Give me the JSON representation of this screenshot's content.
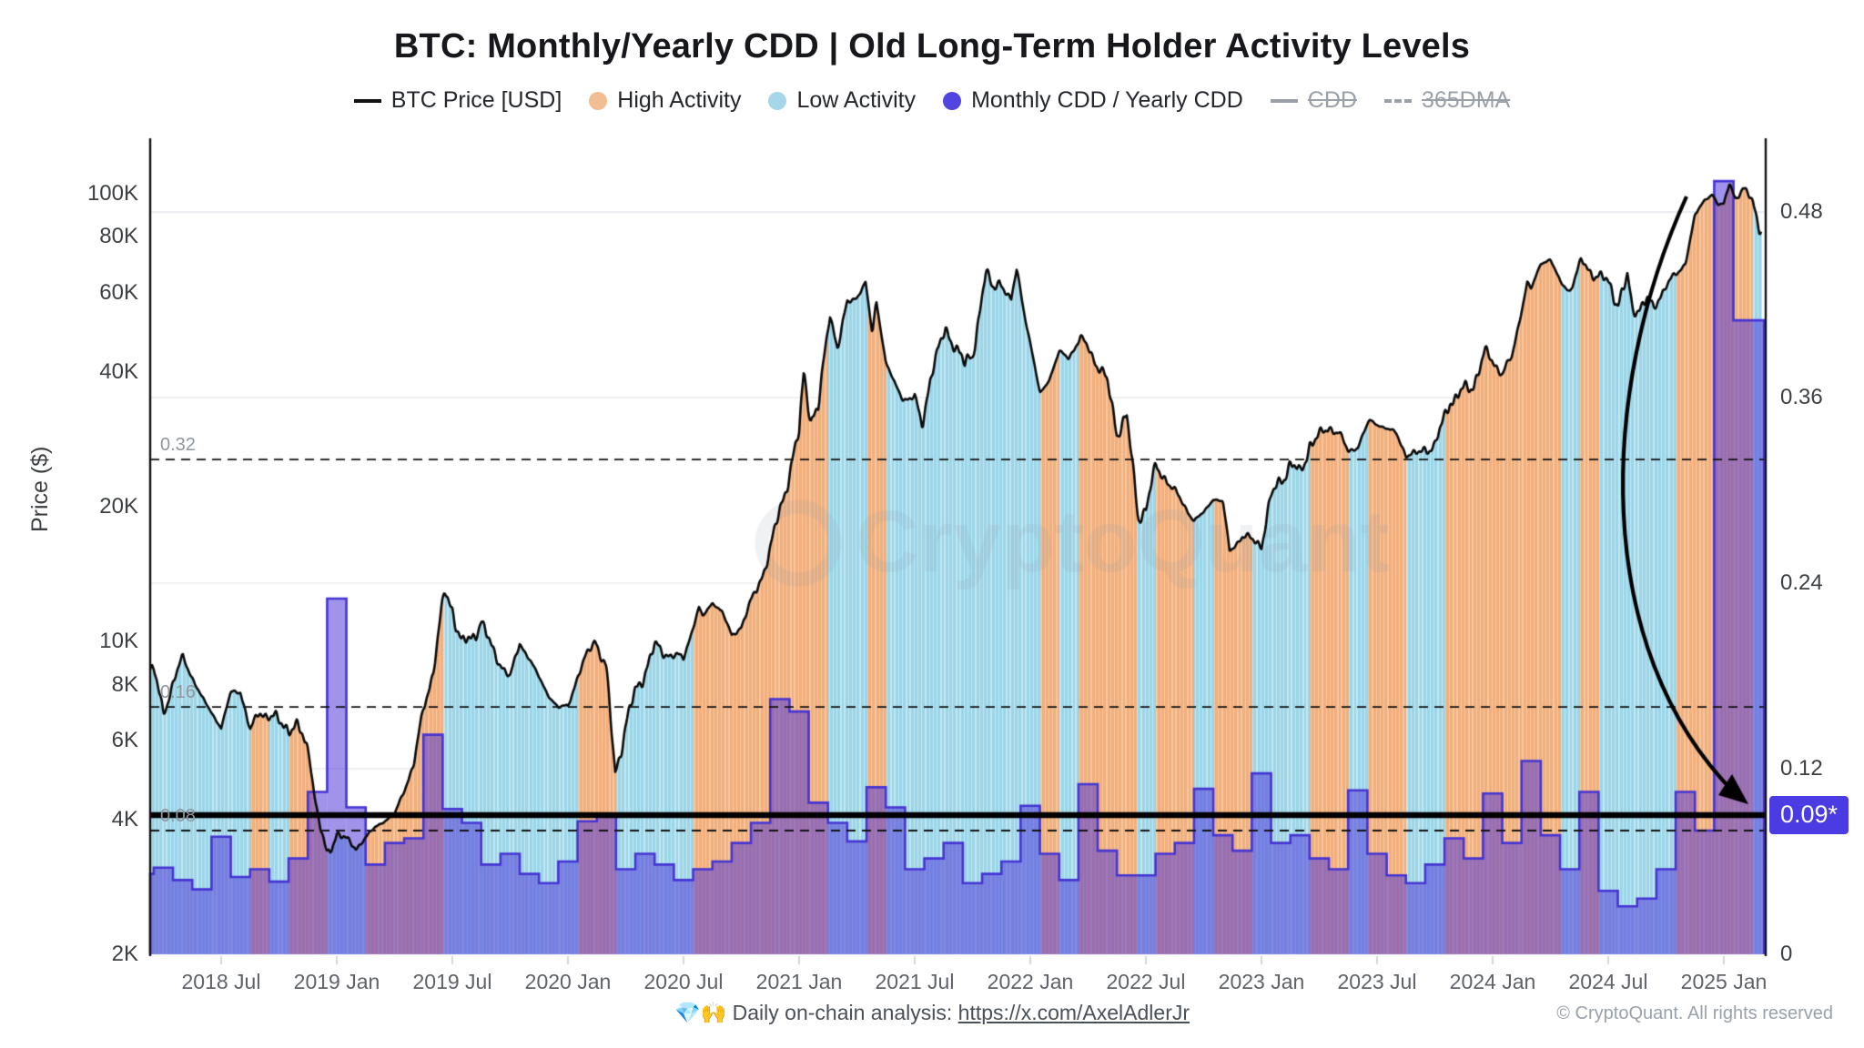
{
  "title": "BTC: Monthly/Yearly CDD | Old Long-Term Holder Activity Levels",
  "legend": {
    "price_label": "BTC Price [USD]",
    "high_label": "High Activity",
    "low_label": "Low Activity",
    "cdd_ratio_label": "Monthly CDD / Yearly CDD",
    "cdd_disabled_label": "CDD",
    "dma_disabled_label": "365DMA"
  },
  "watermark": "CryptoQuant",
  "footer": {
    "analysis_text": "💎🙌 Daily on-chain analysis: ",
    "analysis_link": "https://x.com/AxelAdlerJr",
    "copyright": "© CryptoQuant. All rights reserved"
  },
  "annotation": {
    "badge_label": "0.09*"
  },
  "chart_data": {
    "type": "composite",
    "subtypes": [
      "line (BTC price, log scale)",
      "area colored by activity",
      "bar (monthly CDD / yearly CDD)"
    ],
    "title": "BTC: Monthly/Yearly CDD | Old Long-Term Holder Activity Levels",
    "left_axis": {
      "label": "Price ($)",
      "scale": "log",
      "min": 2000,
      "max": 128000,
      "ticks": [
        100000,
        80000,
        60000,
        40000,
        20000,
        10000,
        8000,
        6000,
        4000,
        2000
      ],
      "tick_labels": [
        "100K",
        "80K",
        "60K",
        "40K",
        "20K",
        "10K",
        "8K",
        "6K",
        "4K",
        "2K"
      ]
    },
    "right_axis": {
      "label": "",
      "scale": "linear",
      "min": 0,
      "max": 0.523,
      "ticks": [
        0.48,
        0.36,
        0.24,
        0.12,
        0
      ],
      "tick_labels": [
        "0.48",
        "0.36",
        "0.24",
        "0.12",
        "0"
      ]
    },
    "x_axis": {
      "tick_labels": [
        "2018 Jul",
        "2019 Jan",
        "2019 Jul",
        "2020 Jan",
        "2020 Jul",
        "2021 Jan",
        "2021 Jul",
        "2022 Jan",
        "2022 Jul",
        "2023 Jan",
        "2023 Jul",
        "2024 Jan",
        "2024 Jul",
        "2025 Jan"
      ],
      "tick_month_offsets": [
        4,
        10,
        16,
        22,
        28,
        34,
        40,
        46,
        52,
        58,
        64,
        70,
        76,
        82
      ],
      "start_month": "2018-03",
      "end_month": "2025-03"
    },
    "hlines": {
      "dashed_levels": [
        0.32,
        0.16,
        0.08
      ],
      "dashed_labels": [
        "0.32",
        "0.16",
        "0.08"
      ],
      "solid_level": 0.09,
      "solid_label": "0.09*"
    },
    "activity_by_month": "LLLLLLHLHHLLHHHHLLLLLLLHHLLLLHHHHHHHLLHLLLLLLLLHLHHHLHHLHHLLLHHLHHLLHHHHHHLHLLLLHHHHL",
    "cdd_ratio_by_month": [
      0.052,
      0.056,
      0.048,
      0.042,
      0.076,
      0.05,
      0.055,
      0.047,
      0.062,
      0.105,
      0.23,
      0.095,
      0.058,
      0.072,
      0.075,
      0.142,
      0.094,
      0.085,
      0.058,
      0.065,
      0.052,
      0.046,
      0.06,
      0.086,
      0.09,
      0.055,
      0.065,
      0.058,
      0.048,
      0.055,
      0.06,
      0.072,
      0.085,
      0.165,
      0.157,
      0.098,
      0.085,
      0.073,
      0.108,
      0.095,
      0.055,
      0.062,
      0.072,
      0.046,
      0.052,
      0.06,
      0.096,
      0.065,
      0.048,
      0.11,
      0.067,
      0.051,
      0.051,
      0.065,
      0.072,
      0.107,
      0.077,
      0.067,
      0.117,
      0.072,
      0.077,
      0.062,
      0.055,
      0.106,
      0.065,
      0.051,
      0.046,
      0.058,
      0.075,
      0.062,
      0.104,
      0.072,
      0.125,
      0.077,
      0.055,
      0.105,
      0.041,
      0.031,
      0.036,
      0.055,
      0.105,
      0.08,
      0.5,
      0.41,
      0.41
    ],
    "price_anchors": [
      [
        0.5,
        8600
      ],
      [
        1,
        6900
      ],
      [
        1.5,
        8100
      ],
      [
        2,
        9200
      ],
      [
        3,
        7500
      ],
      [
        4,
        6400
      ],
      [
        4.5,
        7700
      ],
      [
        5,
        7750
      ],
      [
        5.5,
        6300
      ],
      [
        6,
        7000
      ],
      [
        7,
        6600
      ],
      [
        8,
        6350
      ],
      [
        8.6,
        5650
      ],
      [
        9,
        4050
      ],
      [
        9.5,
        3300
      ],
      [
        10,
        3750
      ],
      [
        11,
        3450
      ],
      [
        12,
        3850
      ],
      [
        13,
        4100
      ],
      [
        14,
        5300
      ],
      [
        14.5,
        7100
      ],
      [
        15,
        8550
      ],
      [
        15.6,
        12900
      ],
      [
        16,
        11900
      ],
      [
        16.5,
        9800
      ],
      [
        17,
        10100
      ],
      [
        17.5,
        11200
      ],
      [
        18,
        9650
      ],
      [
        19,
        8300
      ],
      [
        19.5,
        9900
      ],
      [
        20,
        9150
      ],
      [
        21,
        7550
      ],
      [
        21.5,
        7100
      ],
      [
        22,
        7200
      ],
      [
        22.5,
        8300
      ],
      [
        23,
        9350
      ],
      [
        23.4,
        10200
      ],
      [
        24,
        8550
      ],
      [
        24.45,
        5100
      ],
      [
        25,
        6450
      ],
      [
        25.5,
        7700
      ],
      [
        26,
        8600
      ],
      [
        26.5,
        9700
      ],
      [
        27,
        9450
      ],
      [
        28,
        9150
      ],
      [
        28.8,
        11900
      ],
      [
        29,
        11350
      ],
      [
        29.5,
        12200
      ],
      [
        30,
        11650
      ],
      [
        30.5,
        10300
      ],
      [
        31,
        10800
      ],
      [
        32,
        13800
      ],
      [
        32.5,
        15900
      ],
      [
        33,
        19700
      ],
      [
        33.5,
        23800
      ],
      [
        34,
        29000
      ],
      [
        34.25,
        40200
      ],
      [
        34.6,
        31500
      ],
      [
        35,
        33100
      ],
      [
        35.6,
        54500
      ],
      [
        36,
        45200
      ],
      [
        36.5,
        57000
      ],
      [
        37,
        58800
      ],
      [
        37.45,
        63300
      ],
      [
        37.8,
        48500
      ],
      [
        38,
        57800
      ],
      [
        38.5,
        42000
      ],
      [
        39,
        37300
      ],
      [
        39.4,
        34800
      ],
      [
        40,
        35000
      ],
      [
        40.4,
        30200
      ],
      [
        40.8,
        39000
      ],
      [
        41,
        41500
      ],
      [
        41.6,
        49500
      ],
      [
        42,
        47100
      ],
      [
        42.6,
        41000
      ],
      [
        43,
        43800
      ],
      [
        43.7,
        66500
      ],
      [
        44,
        61300
      ],
      [
        44.4,
        64300
      ],
      [
        45,
        57000
      ],
      [
        45.3,
        68300
      ],
      [
        45.7,
        53800
      ],
      [
        46,
        46200
      ],
      [
        46.5,
        35800
      ],
      [
        47,
        38500
      ],
      [
        47.5,
        44300
      ],
      [
        48,
        43200
      ],
      [
        48.6,
        47300
      ],
      [
        49,
        45500
      ],
      [
        50,
        37700
      ],
      [
        50.5,
        29500
      ],
      [
        51,
        31800
      ],
      [
        51.6,
        19000
      ],
      [
        52,
        19900
      ],
      [
        52.5,
        24300
      ],
      [
        53,
        23300
      ],
      [
        54,
        20050
      ],
      [
        54.5,
        18600
      ],
      [
        55,
        19400
      ],
      [
        55.5,
        20800
      ],
      [
        56,
        20500
      ],
      [
        56.35,
        15900
      ],
      [
        57,
        17150
      ],
      [
        58,
        16550
      ],
      [
        58.5,
        20900
      ],
      [
        59,
        23100
      ],
      [
        59.5,
        24800
      ],
      [
        60,
        23500
      ],
      [
        60.5,
        27700
      ],
      [
        61,
        28500
      ],
      [
        61.5,
        30200
      ],
      [
        62,
        29300
      ],
      [
        62.5,
        26500
      ],
      [
        63,
        27200
      ],
      [
        63.6,
        31200
      ],
      [
        64,
        30500
      ],
      [
        65,
        29200
      ],
      [
        65.5,
        26100
      ],
      [
        66,
        26000
      ],
      [
        66.5,
        27200
      ],
      [
        67,
        26950
      ],
      [
        67.8,
        35100
      ],
      [
        68,
        34650
      ],
      [
        69,
        37700
      ],
      [
        69.6,
        43900
      ],
      [
        70,
        42250
      ],
      [
        70.5,
        39800
      ],
      [
        71,
        43000
      ],
      [
        71.8,
        63500
      ],
      [
        72,
        61200
      ],
      [
        72.5,
        69800
      ],
      [
        73,
        71300
      ],
      [
        73.5,
        63500
      ],
      [
        74,
        60600
      ],
      [
        74.6,
        70500
      ],
      [
        75,
        67500
      ],
      [
        75.5,
        65500
      ],
      [
        76,
        62700
      ],
      [
        76.5,
        57500
      ],
      [
        77,
        64600
      ],
      [
        77.25,
        53800
      ],
      [
        78,
        58900
      ],
      [
        78.35,
        54300
      ],
      [
        79,
        63300
      ],
      [
        79.7,
        66500
      ],
      [
        80,
        70000
      ],
      [
        80.5,
        89500
      ],
      [
        81,
        96500
      ],
      [
        81.4,
        99800
      ],
      [
        81.7,
        94500
      ],
      [
        82,
        94400
      ],
      [
        82.3,
        105800
      ],
      [
        82.6,
        97800
      ],
      [
        83,
        102100
      ],
      [
        83.5,
        96000
      ],
      [
        83.85,
        84500
      ],
      [
        84.2,
        83000
      ],
      [
        84.45,
        86500
      ]
    ],
    "colors": {
      "price_line": "#0b0b0b",
      "high_activity": "#f2ae7b",
      "high_activity_stripe": "#f7c8a0",
      "low_activity": "#9bd5e8",
      "low_activity_stripe": "#c4e7f1",
      "cdd_bar_fill": "rgba(82,59,215,0.55)",
      "cdd_bar_stroke": "#4534d4",
      "legend_high_dot": "#f1bd92",
      "legend_low_dot": "#a6d7e8",
      "legend_cdd_dot": "#5244e1",
      "disabled_text": "#9aa0a8",
      "badge_bg": "#4a3ce2",
      "gridline": "#e9ebef",
      "axis_line": "#111111",
      "watermark": "rgba(144,155,172,0.14)"
    },
    "legend_position": "top",
    "grid": "horizontal only"
  }
}
